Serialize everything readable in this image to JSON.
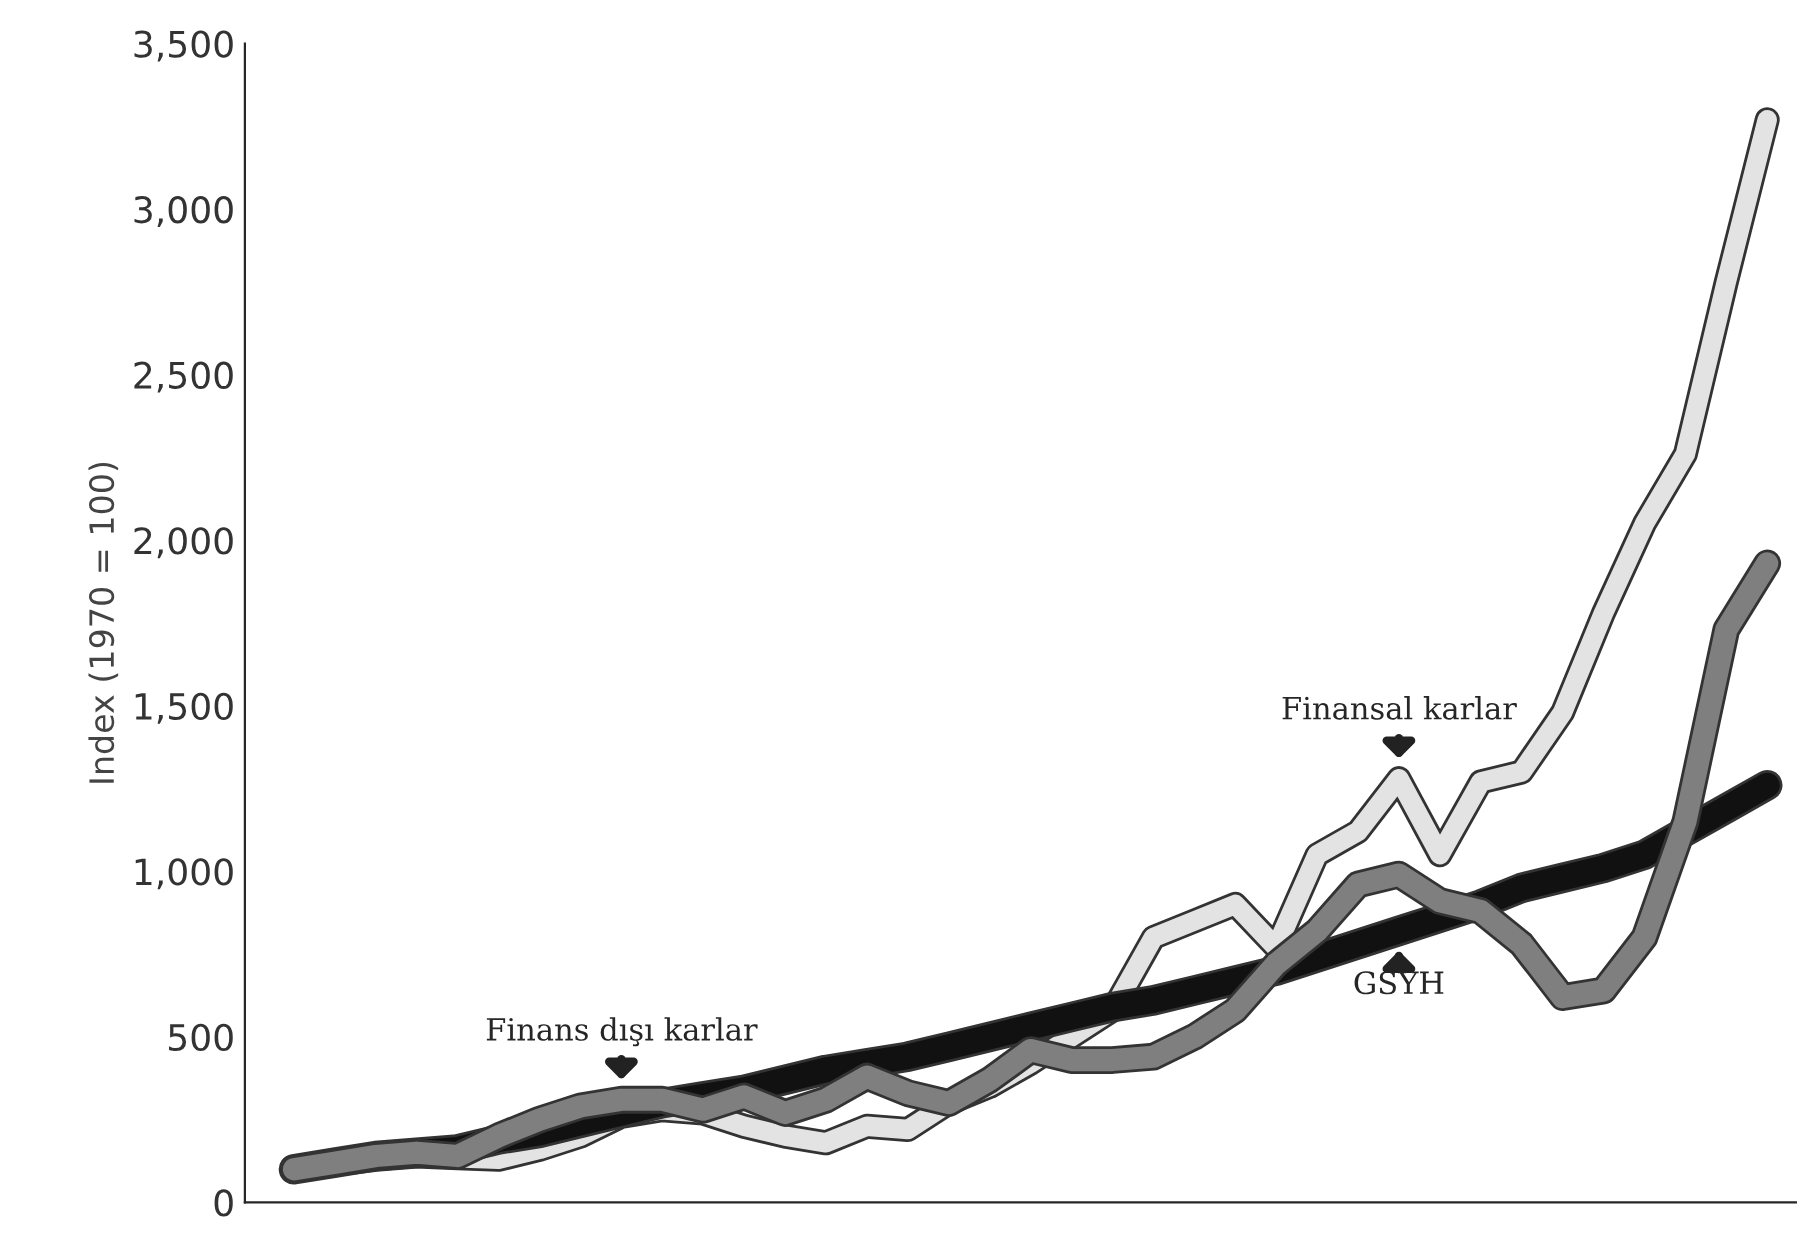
{
  "chart_data": {
    "type": "line",
    "ylabel": "Index (1970 = 100)",
    "categories": [
      null,
      null,
      null,
      null,
      null,
      null,
      null,
      null,
      null,
      null,
      null,
      null,
      null,
      null,
      null,
      null,
      null,
      null,
      null,
      null,
      null,
      null,
      null,
      null,
      null,
      null,
      null,
      null,
      null,
      null,
      null,
      null,
      null,
      null,
      null,
      null,
      null
    ],
    "series": [
      {
        "color": "#e3e3e3",
        "values": [
          100,
          115,
          130,
          140,
          135,
          130,
          160,
          200,
          260,
          280,
          270,
          230,
          200,
          180,
          230,
          220,
          300,
          350,
          420,
          500,
          580,
          800,
          850,
          900,
          770,
          1050,
          1120,
          1280,
          1050,
          1270,
          1300,
          1480,
          1780,
          2050,
          2260,
          2780,
          3270
        ]
      },
      {
        "color": "#111111",
        "values": [
          100,
          120,
          140,
          150,
          160,
          190,
          210,
          240,
          270,
          300,
          320,
          340,
          370,
          400,
          420,
          440,
          470,
          500,
          530,
          560,
          590,
          610,
          640,
          670,
          700,
          740,
          780,
          820,
          860,
          900,
          950,
          980,
          1010,
          1050,
          1120,
          1190,
          1260
        ]
      },
      {
        "color": "#7f7f7f",
        "values": [
          100,
          120,
          140,
          150,
          140,
          200,
          250,
          290,
          310,
          310,
          280,
          320,
          270,
          310,
          380,
          330,
          300,
          370,
          460,
          430,
          430,
          440,
          500,
          580,
          720,
          820,
          960,
          990,
          910,
          880,
          780,
          620,
          640,
          800,
          1150,
          1730,
          1930
        ]
      }
    ],
    "annotations": [
      "Finans dışı karlar",
      "Finansal karlar",
      "GSYH"
    ],
    "ylim": [
      0,
      3500
    ],
    "yticks": [
      0,
      500,
      {
        "value": 1000,
        "label": "1,000"
      },
      {
        "value": 1500,
        "label": "1,500"
      },
      {
        "value": 2000,
        "label": "2,000"
      },
      {
        "value": 2500,
        "label": "2,500"
      },
      {
        "value": 3000,
        "label": "3,000"
      },
      {
        "value": 3500,
        "label": "3,500"
      }
    ],
    "tick_labels": "y",
    "grid": false,
    "legend": false,
    "marker": "none",
    "line_style": "solid"
  }
}
